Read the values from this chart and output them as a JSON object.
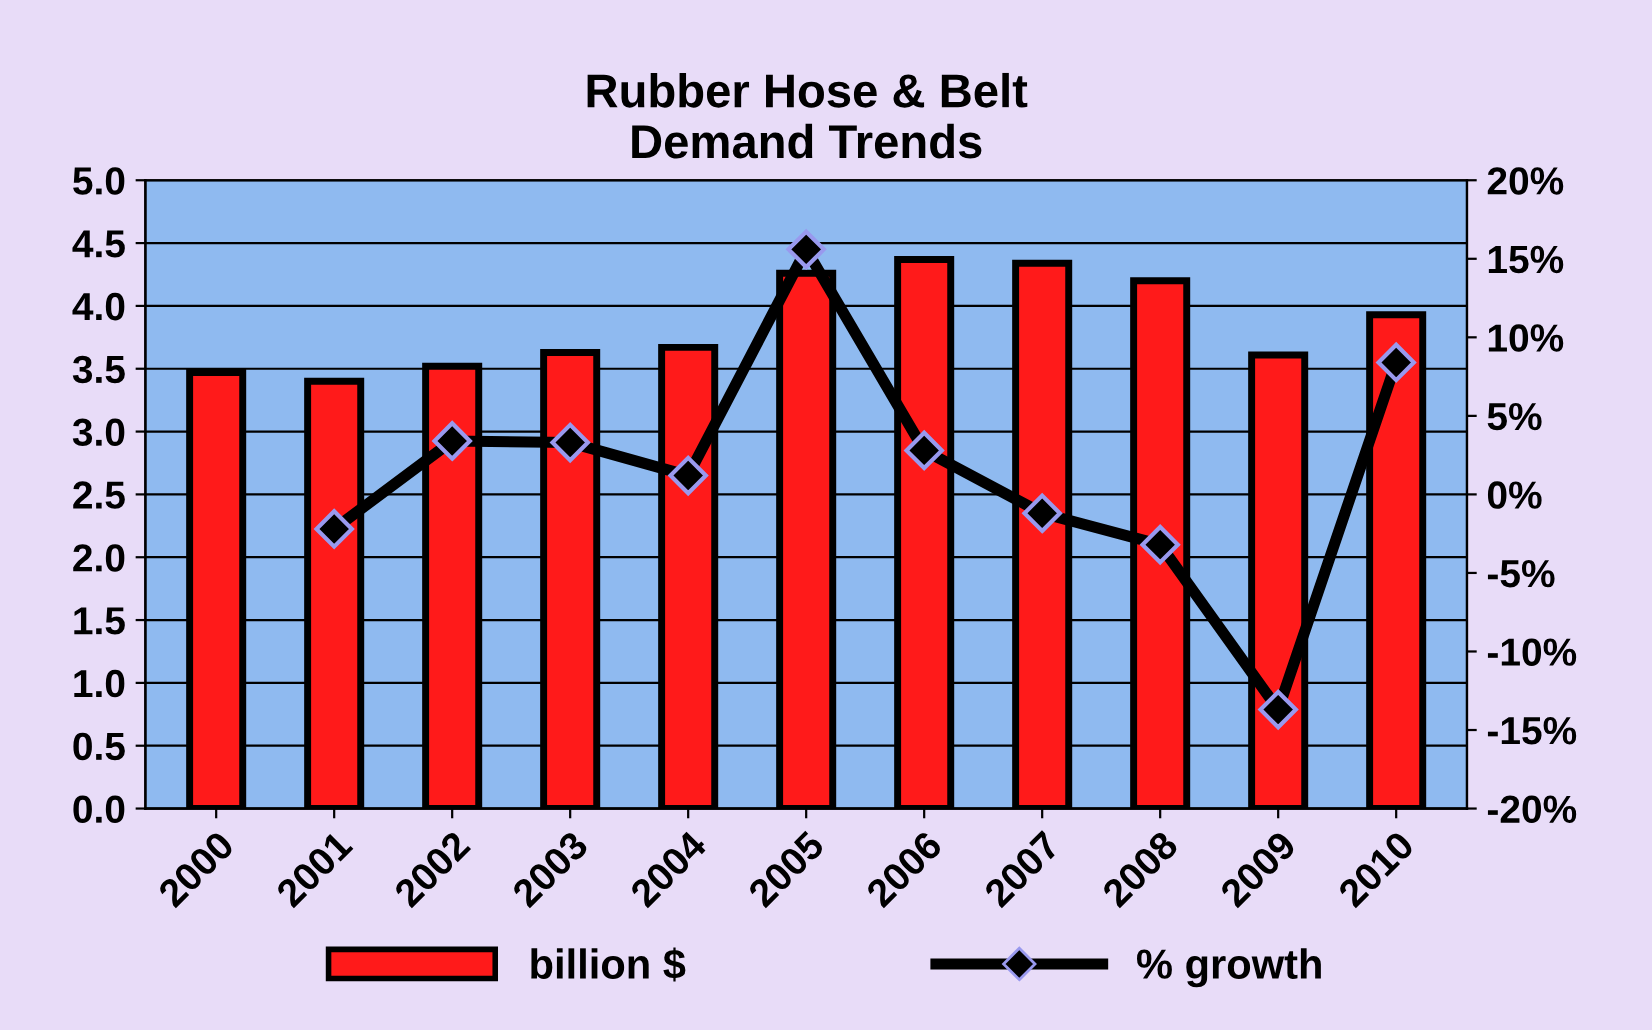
{
  "chart_data": {
    "type": "bar",
    "title": "Rubber Hose & Belt\nDemand Trends",
    "categories": [
      "2000",
      "2001",
      "2002",
      "2003",
      "2004",
      "2005",
      "2006",
      "2007",
      "2008",
      "2009",
      "2010"
    ],
    "series": [
      {
        "name": "billion $",
        "color": "#ff1a1a",
        "values": [
          3.47,
          3.4,
          3.52,
          3.63,
          3.67,
          4.26,
          4.37,
          4.34,
          4.2,
          3.61,
          3.93
        ]
      },
      {
        "name": "% growth",
        "type": "line",
        "axis": "y2",
        "color": "#000000",
        "marker": "diamond",
        "values": [
          null,
          -2.2,
          3.4,
          3.3,
          1.2,
          15.6,
          2.8,
          -1.2,
          -3.2,
          -13.7,
          8.4
        ]
      }
    ],
    "ylim": [
      0,
      5
    ],
    "yticks": [
      {
        "value": 0,
        "label": "0.0"
      },
      {
        "value": 0.5,
        "label": "0.5"
      },
      {
        "value": 1,
        "label": "1.0"
      },
      {
        "value": 1.5,
        "label": "1.5"
      },
      {
        "value": 2,
        "label": "2.0"
      },
      {
        "value": 2.5,
        "label": "2.5"
      },
      {
        "value": 3,
        "label": "3.0"
      },
      {
        "value": 3.5,
        "label": "3.5"
      },
      {
        "value": 4,
        "label": "4.0"
      },
      {
        "value": 4.5,
        "label": "4.5"
      },
      {
        "value": 5,
        "label": "5.0"
      }
    ],
    "y2lim": [
      -20,
      20
    ],
    "y2ticks": [
      {
        "value": -20,
        "label": "-20%"
      },
      {
        "value": -15,
        "label": "-15%"
      },
      {
        "value": -10,
        "label": "-10%"
      },
      {
        "value": -5,
        "label": "-5%"
      },
      {
        "value": 0,
        "label": "0%"
      },
      {
        "value": 5,
        "label": "5%"
      },
      {
        "value": 10,
        "label": "10%"
      },
      {
        "value": 15,
        "label": "15%"
      },
      {
        "value": 20,
        "label": "20%"
      }
    ],
    "grid": "y",
    "legend": "bottom"
  }
}
